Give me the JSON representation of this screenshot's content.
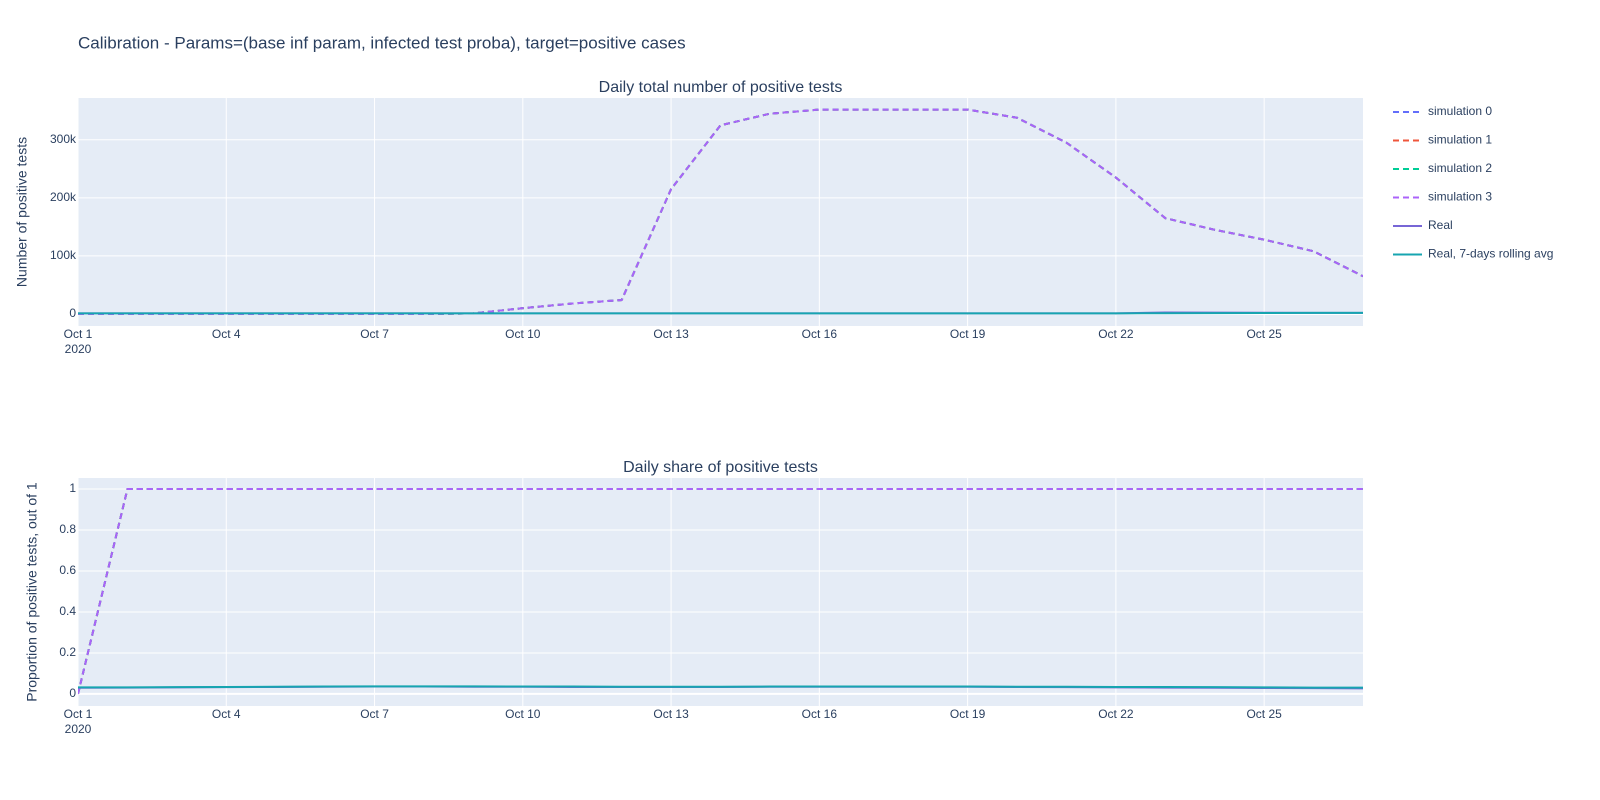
{
  "title": "Calibration - Params=(base inf param, infected test proba), target=positive cases",
  "year_label": "2020",
  "chart_data": [
    {
      "type": "line",
      "title": "Daily total number of positive tests",
      "y_label": "Number of positive tests",
      "x": [
        "2020-10-01",
        "2020-10-02",
        "2020-10-03",
        "2020-10-04",
        "2020-10-05",
        "2020-10-06",
        "2020-10-07",
        "2020-10-08",
        "2020-10-09",
        "2020-10-10",
        "2020-10-11",
        "2020-10-12",
        "2020-10-13",
        "2020-10-14",
        "2020-10-15",
        "2020-10-16",
        "2020-10-17",
        "2020-10-18",
        "2020-10-19",
        "2020-10-20",
        "2020-10-21",
        "2020-10-22",
        "2020-10-23",
        "2020-10-24",
        "2020-10-25",
        "2020-10-26",
        "2020-10-27"
      ],
      "xlim": [
        "2020-10-01",
        "2020-10-27"
      ],
      "xticks": [
        {
          "value": "2020-10-01",
          "label": "Oct 1"
        },
        {
          "value": "2020-10-04",
          "label": "Oct 4"
        },
        {
          "value": "2020-10-07",
          "label": "Oct 7"
        },
        {
          "value": "2020-10-10",
          "label": "Oct 10"
        },
        {
          "value": "2020-10-13",
          "label": "Oct 13"
        },
        {
          "value": "2020-10-16",
          "label": "Oct 16"
        },
        {
          "value": "2020-10-19",
          "label": "Oct 19"
        },
        {
          "value": "2020-10-22",
          "label": "Oct 22"
        },
        {
          "value": "2020-10-25",
          "label": "Oct 25"
        }
      ],
      "ylim": [
        -20700,
        372000
      ],
      "yticks": [
        0,
        {
          "value": 100000,
          "label": "100k"
        },
        {
          "value": 200000,
          "label": "200k"
        },
        {
          "value": 300000,
          "label": "300k"
        }
      ],
      "grid": true,
      "legend": "top-right",
      "series": [
        {
          "name": "simulation 0",
          "color": "#636efa",
          "dash": true,
          "values": [
            0,
            0,
            0,
            0,
            0,
            0,
            0,
            0,
            1000,
            10000,
            18000,
            24000,
            215000,
            325000,
            345000,
            352000,
            352000,
            352000,
            352000,
            338000,
            295000,
            235000,
            165000,
            145000,
            128000,
            108000,
            65000
          ]
        },
        {
          "name": "simulation 1",
          "color": "#ef553b",
          "dash": true,
          "values": [
            0,
            0,
            0,
            0,
            0,
            0,
            0,
            0,
            1000,
            10000,
            18000,
            24000,
            215000,
            325000,
            345000,
            352000,
            352000,
            352000,
            352000,
            338000,
            295000,
            235000,
            165000,
            145000,
            128000,
            108000,
            65000
          ]
        },
        {
          "name": "simulation 2",
          "color": "#00cc96",
          "dash": true,
          "values": [
            0,
            0,
            0,
            0,
            0,
            0,
            0,
            0,
            1000,
            10000,
            18000,
            24000,
            215000,
            325000,
            345000,
            352000,
            352000,
            352000,
            352000,
            338000,
            295000,
            235000,
            165000,
            145000,
            128000,
            108000,
            65000
          ]
        },
        {
          "name": "simulation 3",
          "color": "#ab63fa",
          "dash": true,
          "values": [
            0,
            0,
            0,
            0,
            0,
            0,
            0,
            0,
            1000,
            10000,
            18000,
            24000,
            215000,
            325000,
            345000,
            352000,
            352000,
            352000,
            352000,
            338000,
            295000,
            235000,
            165000,
            145000,
            128000,
            108000,
            65000
          ]
        },
        {
          "name": "Real",
          "color": "#7766d6",
          "dash": false,
          "values": [
            1000,
            1000,
            1000,
            1000,
            1000,
            1000,
            1000,
            1000,
            1000,
            1000,
            1000,
            1000,
            1000,
            1000,
            1000,
            1000,
            1000,
            1000,
            1000,
            1000,
            1000,
            1000,
            2500,
            2300,
            2100,
            2000,
            1800
          ]
        },
        {
          "name": "Real, 7-days rolling avg",
          "color": "#17a5b0",
          "dash": false,
          "values": [
            1000,
            1000,
            1000,
            1000,
            1000,
            1000,
            1000,
            1000,
            1000,
            1000,
            1000,
            1000,
            1000,
            1000,
            1000,
            1000,
            1000,
            1000,
            1000,
            1000,
            1000,
            1100,
            1300,
            1500,
            1700,
            1800,
            1900
          ]
        }
      ]
    },
    {
      "type": "line",
      "title": "Daily share of positive tests",
      "y_label": "Proportion of positive tests, out of 1",
      "x": [
        "2020-10-01",
        "2020-10-02",
        "2020-10-03",
        "2020-10-04",
        "2020-10-05",
        "2020-10-06",
        "2020-10-07",
        "2020-10-08",
        "2020-10-09",
        "2020-10-10",
        "2020-10-11",
        "2020-10-12",
        "2020-10-13",
        "2020-10-14",
        "2020-10-15",
        "2020-10-16",
        "2020-10-17",
        "2020-10-18",
        "2020-10-19",
        "2020-10-20",
        "2020-10-21",
        "2020-10-22",
        "2020-10-23",
        "2020-10-24",
        "2020-10-25",
        "2020-10-26",
        "2020-10-27"
      ],
      "xlim": [
        "2020-10-01",
        "2020-10-27"
      ],
      "xticks": [
        {
          "value": "2020-10-01",
          "label": "Oct 1"
        },
        {
          "value": "2020-10-04",
          "label": "Oct 4"
        },
        {
          "value": "2020-10-07",
          "label": "Oct 7"
        },
        {
          "value": "2020-10-10",
          "label": "Oct 10"
        },
        {
          "value": "2020-10-13",
          "label": "Oct 13"
        },
        {
          "value": "2020-10-16",
          "label": "Oct 16"
        },
        {
          "value": "2020-10-19",
          "label": "Oct 19"
        },
        {
          "value": "2020-10-22",
          "label": "Oct 22"
        },
        {
          "value": "2020-10-25",
          "label": "Oct 25"
        }
      ],
      "ylim": [
        -0.059,
        1.054
      ],
      "yticks": [
        0,
        0.2,
        0.4,
        0.6,
        0.8,
        1
      ],
      "grid": true,
      "series": [
        {
          "color": "#636efa",
          "dash": true,
          "values": [
            0,
            1,
            1,
            1,
            1,
            1,
            1,
            1,
            1,
            1,
            1,
            1,
            1,
            1,
            1,
            1,
            1,
            1,
            1,
            1,
            1,
            1,
            1,
            1,
            1,
            1,
            1
          ]
        },
        {
          "color": "#ef553b",
          "dash": true,
          "values": [
            0,
            1,
            1,
            1,
            1,
            1,
            1,
            1,
            1,
            1,
            1,
            1,
            1,
            1,
            1,
            1,
            1,
            1,
            1,
            1,
            1,
            1,
            1,
            1,
            1,
            1,
            1
          ]
        },
        {
          "color": "#00cc96",
          "dash": true,
          "values": [
            0,
            1,
            1,
            1,
            1,
            1,
            1,
            1,
            1,
            1,
            1,
            1,
            1,
            1,
            1,
            1,
            1,
            1,
            1,
            1,
            1,
            1,
            1,
            1,
            1,
            1,
            1
          ]
        },
        {
          "color": "#ab63fa",
          "dash": true,
          "values": [
            0,
            1,
            1,
            1,
            1,
            1,
            1,
            1,
            1,
            1,
            1,
            1,
            1,
            1,
            1,
            1,
            1,
            1,
            1,
            1,
            1,
            1,
            1,
            1,
            1,
            1,
            1
          ]
        },
        {
          "color": "#7766d6",
          "dash": false,
          "values": [
            0.03,
            0.031,
            0.032,
            0.033,
            0.034,
            0.035,
            0.036,
            0.036,
            0.035,
            0.035,
            0.034,
            0.034,
            0.034,
            0.034,
            0.035,
            0.035,
            0.035,
            0.035,
            0.035,
            0.034,
            0.033,
            0.032,
            0.031,
            0.03,
            0.029,
            0.028,
            0.027
          ]
        },
        {
          "color": "#17a5b0",
          "dash": false,
          "values": [
            0.032,
            0.032,
            0.033,
            0.034,
            0.035,
            0.036,
            0.037,
            0.037,
            0.037,
            0.036,
            0.036,
            0.035,
            0.035,
            0.035,
            0.036,
            0.036,
            0.036,
            0.036,
            0.036,
            0.035,
            0.035,
            0.034,
            0.034,
            0.033,
            0.032,
            0.031,
            0.031
          ]
        }
      ]
    }
  ]
}
